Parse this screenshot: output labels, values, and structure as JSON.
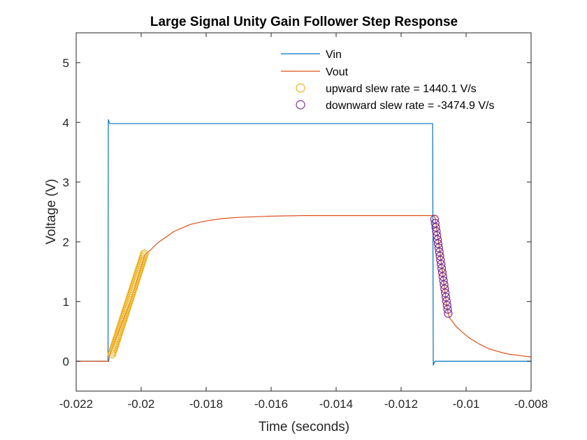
{
  "chart_data": {
    "type": "line",
    "title": "Large Signal Unity Gain Follower Step Response",
    "xlabel": "Time (seconds)",
    "ylabel": "Voltage (V)",
    "xlim": [
      -0.022,
      -0.008
    ],
    "ylim": [
      -0.5,
      5.5
    ],
    "xticks": [
      -0.022,
      -0.02,
      -0.018,
      -0.016,
      -0.014,
      -0.012,
      -0.01,
      -0.008
    ],
    "xtick_labels": [
      "-0.022",
      "-0.02",
      "-0.018",
      "-0.016",
      "-0.014",
      "-0.012",
      "-0.01",
      "-0.008"
    ],
    "yticks": [
      0,
      1,
      2,
      3,
      4,
      5
    ],
    "ytick_labels": [
      "0",
      "1",
      "2",
      "3",
      "4",
      "5"
    ],
    "grid": false,
    "legend_position": "top-center",
    "series": [
      {
        "name": "Vin",
        "kind": "line",
        "color": "#0072BD",
        "x": [
          -0.022,
          -0.02102,
          -0.02101,
          -0.02098,
          -0.02095,
          -0.0209,
          -0.02,
          -0.018,
          -0.016,
          -0.014,
          -0.012,
          -0.01103,
          -0.01101,
          -0.01098,
          -0.01095,
          -0.0109,
          -0.0105,
          -0.01,
          -0.009,
          -0.008
        ],
        "y": [
          0.0,
          0.0,
          4.05,
          3.99,
          3.98,
          3.98,
          3.98,
          3.98,
          3.98,
          3.98,
          3.98,
          3.98,
          -0.07,
          -0.02,
          0.0,
          0.0,
          0.0,
          0.0,
          0.0,
          0.0
        ]
      },
      {
        "name": "Vout",
        "kind": "line",
        "color": "#D95319",
        "x": [
          -0.022,
          -0.021,
          -0.02097,
          -0.0203,
          -0.0199,
          -0.0197,
          -0.0195,
          -0.019,
          -0.0185,
          -0.018,
          -0.0175,
          -0.017,
          -0.016,
          -0.015,
          -0.014,
          -0.013,
          -0.012,
          -0.011,
          -0.01095,
          -0.0108,
          -0.0106,
          -0.01055,
          -0.0105,
          -0.0103,
          -0.0101,
          -0.0099,
          -0.0096,
          -0.0093,
          -0.009,
          -0.0087,
          -0.0084,
          -0.008
        ],
        "y": [
          0.0,
          0.0,
          0.1,
          1.05,
          1.77,
          1.87,
          1.98,
          2.17,
          2.29,
          2.35,
          2.39,
          2.41,
          2.43,
          2.44,
          2.44,
          2.44,
          2.44,
          2.44,
          2.4,
          1.8,
          0.95,
          0.8,
          0.72,
          0.58,
          0.48,
          0.39,
          0.29,
          0.21,
          0.16,
          0.12,
          0.1,
          0.07
        ]
      },
      {
        "name": "upward slew rate = 1440.1 V/s",
        "kind": "markers",
        "marker": "circle",
        "color": "#EDB120",
        "x_range": [
          -0.0209,
          -0.0199
        ],
        "y_range": [
          0.12,
          1.8
        ],
        "count": 55,
        "slew_rate": 1440.1
      },
      {
        "name": "downward slew rate = -3474.9 V/s",
        "kind": "markers",
        "marker": "circle",
        "color": "#7E2F8E",
        "x_range": [
          -0.01097,
          -0.01055
        ],
        "y_range": [
          2.38,
          0.8
        ],
        "count": 24,
        "slew_rate": -3474.9
      }
    ]
  }
}
